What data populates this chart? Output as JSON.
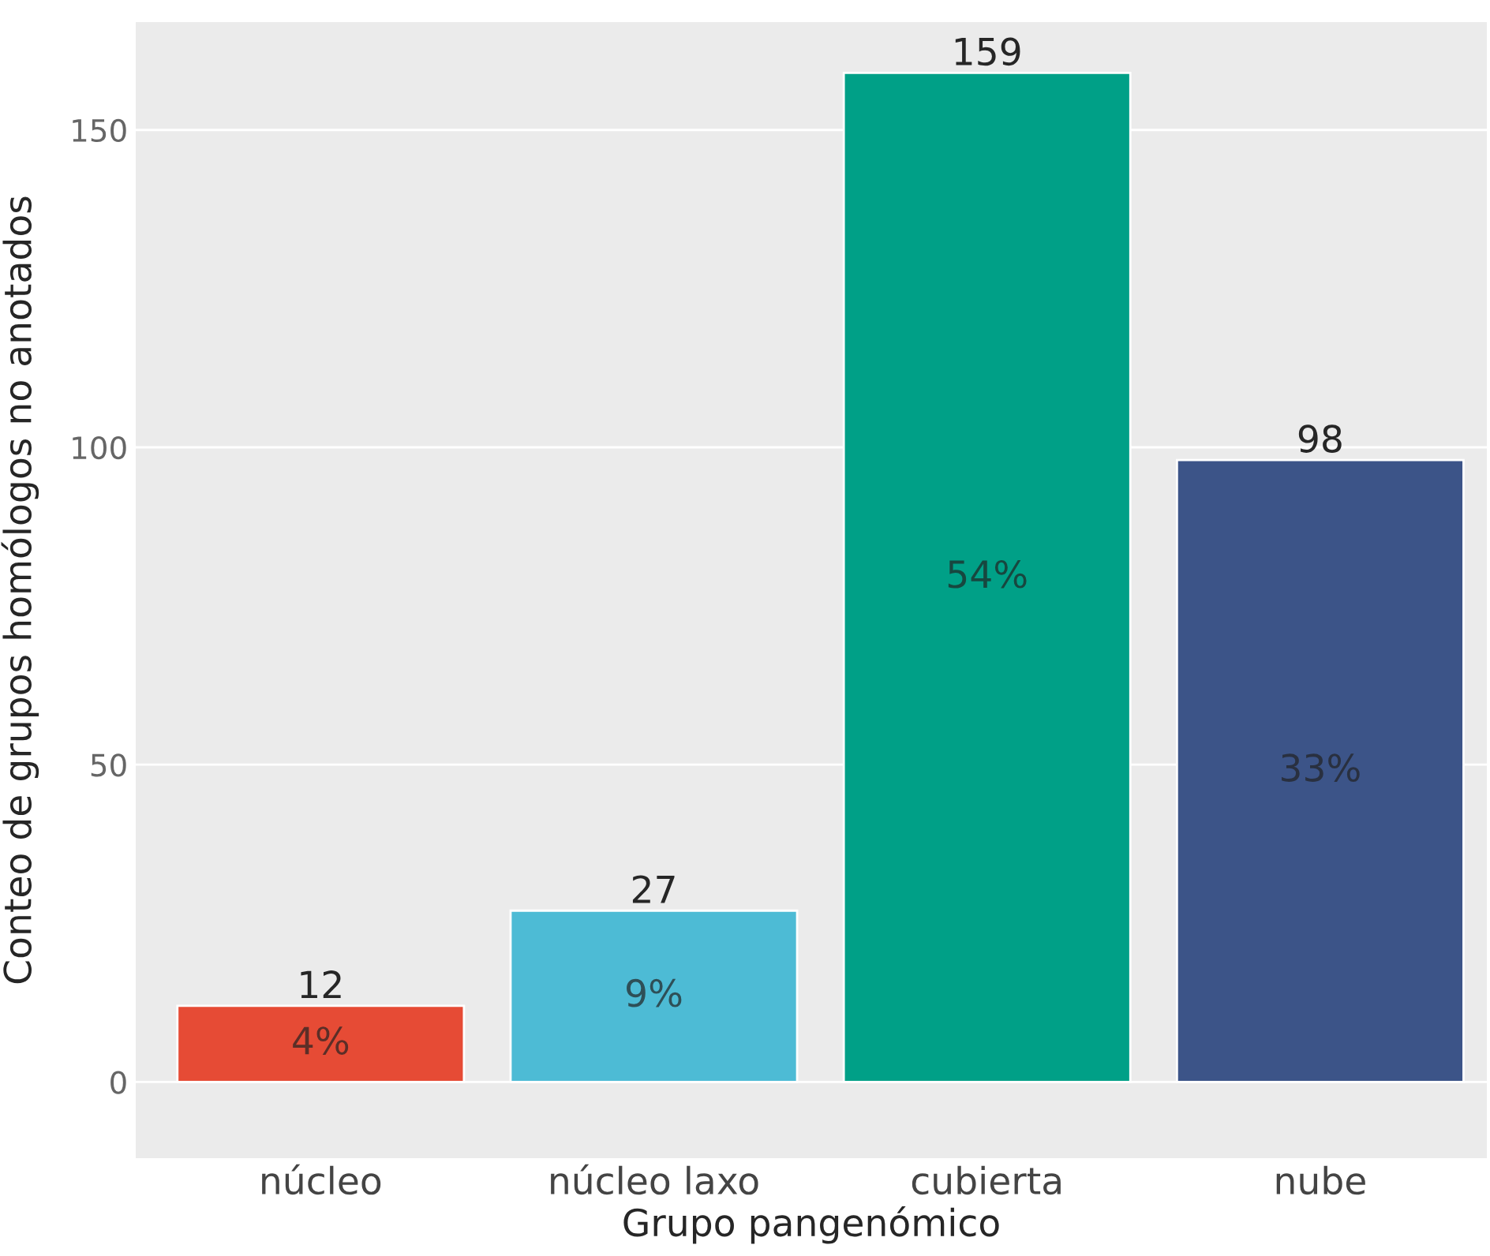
{
  "chart_data": {
    "type": "bar",
    "xlabel": "Grupo pangenómico",
    "ylabel": "Conteo de grupos homólogos no anotados",
    "categories": [
      "núcleo",
      "núcleo laxo",
      "cubierta",
      "nube"
    ],
    "values": [
      12,
      27,
      159,
      98
    ],
    "colors": [
      "#e64b35",
      "#4dbbd5",
      "#00a087",
      "#3c5488"
    ],
    "data_labels": true,
    "ylim": [
      -12,
      167
    ],
    "yticks": [
      0,
      50,
      100,
      150
    ],
    "grid": "y",
    "annotations": [
      "4%",
      "9%",
      "54%",
      "33%"
    ]
  }
}
